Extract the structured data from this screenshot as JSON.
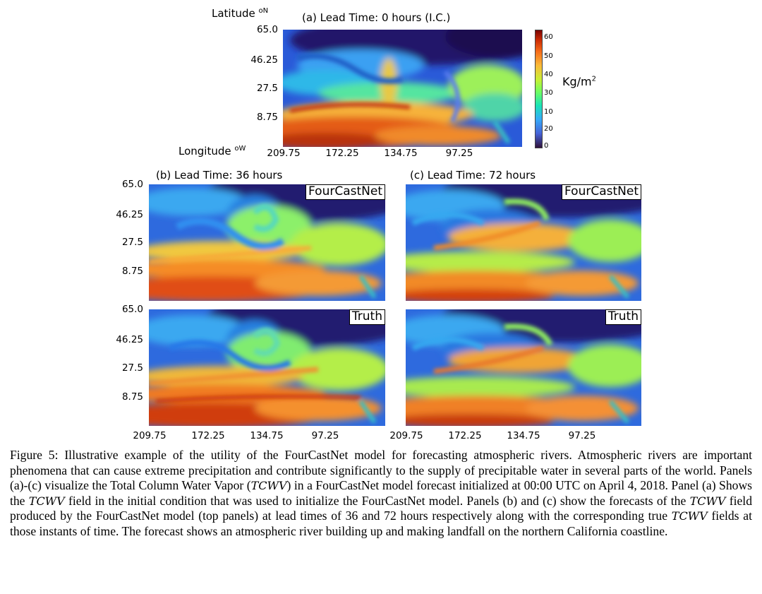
{
  "figure": {
    "panel_a": {
      "title": "(a) Lead Time: 0 hours (I.C.)",
      "lat_label": "Latitude",
      "lat_unit": "oN",
      "lon_label": "Longitude",
      "lon_unit": "oW"
    },
    "panel_b": {
      "title": "(b) Lead Time: 36 hours"
    },
    "panel_c": {
      "title": "(c) Lead Time: 72 hours"
    },
    "tag_forecast": "FourCastNet",
    "tag_truth": "Truth",
    "y_ticks": [
      "65.0",
      "46.25",
      "27.5",
      "8.75"
    ],
    "x_ticks": [
      "209.75",
      "172.25",
      "134.75",
      "97.25"
    ],
    "colorbar": {
      "ticks": [
        "60",
        "50",
        "40",
        "30",
        "20",
        "10",
        "0"
      ],
      "unit_base": "Kg/m",
      "unit_exp": "2",
      "colormap": "turbo",
      "range": [
        0,
        65
      ]
    }
  },
  "caption": {
    "p1": "Figure 5: Illustrative example of the utility of the FourCastNet model for forecasting atmospheric rivers. Atmospheric rivers are important phenomena that can cause extreme precipitation and contribute significantly to the supply of precipitable water in several parts of the world. Panels (a)-(c) visualize the Total Column Water Vapor (",
    "tcwv": "TCWV",
    "p2": ") in a FourCastNet model forecast initialized at 00:00 UTC on April 4, 2018. Panel (a) Shows the ",
    "p3": " field in the initial condition that was used to initialize the FourCastNet model. Panels (b) and (c) show the forecasts of the ",
    "p4": " field produced by the FourCastNet model (top panels) at lead times of 36 and 72 hours respectively along with the corresponding true ",
    "p5": " fields at those instants of time. The forecast shows an atmospheric river building up and making landfall on the northern California coastline."
  }
}
